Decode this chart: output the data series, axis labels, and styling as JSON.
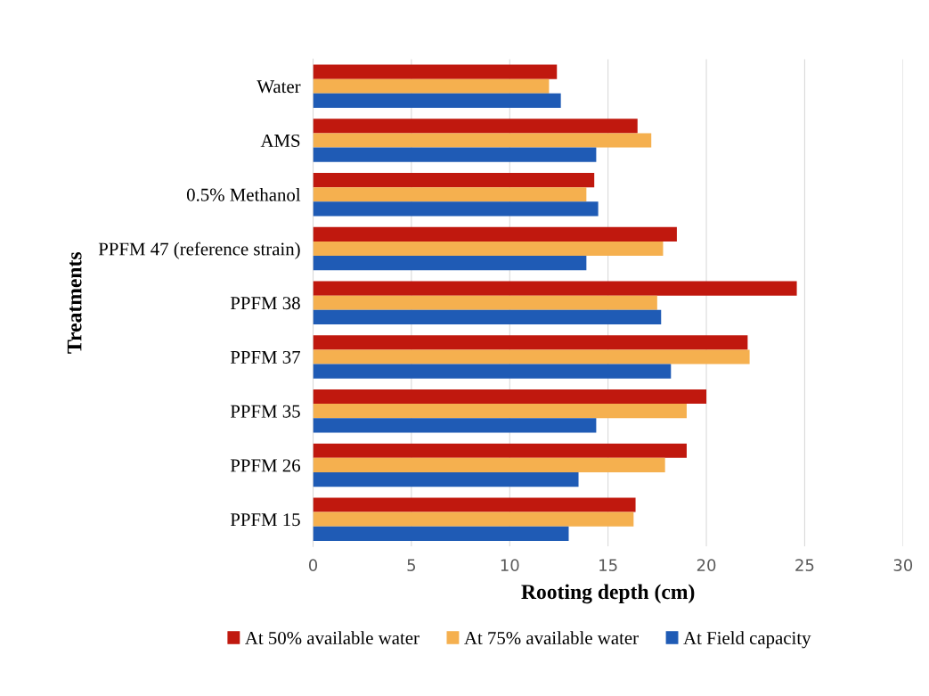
{
  "chart_data": {
    "type": "bar",
    "orientation": "horizontal",
    "xlabel": "Rooting depth (cm)",
    "ylabel": "Treatments",
    "categories": [
      "Water",
      "AMS",
      "0.5% Methanol",
      "PPFM 47 (reference strain)",
      "PPFM 38",
      "PPFM 37",
      "PPFM 35",
      "PPFM 26",
      "PPFM 15"
    ],
    "series": [
      {
        "name": "At 50% available water",
        "color": "#c0180e",
        "values": [
          12.4,
          16.5,
          14.3,
          18.5,
          24.6,
          22.1,
          20.0,
          19.0,
          16.4
        ]
      },
      {
        "name": "At 75% available water",
        "color": "#f5b04f",
        "values": [
          12.0,
          17.2,
          13.9,
          17.8,
          17.5,
          22.2,
          19.0,
          17.9,
          16.3
        ]
      },
      {
        "name": "At Field capacity",
        "color": "#1f5bb5",
        "values": [
          12.6,
          14.4,
          14.5,
          13.9,
          17.7,
          18.2,
          14.4,
          13.5,
          13.0
        ]
      }
    ],
    "xlim": [
      0,
      30
    ],
    "xticks": [
      0,
      5,
      10,
      15,
      20,
      25,
      30
    ],
    "grid": "x",
    "legend": "bottom"
  }
}
